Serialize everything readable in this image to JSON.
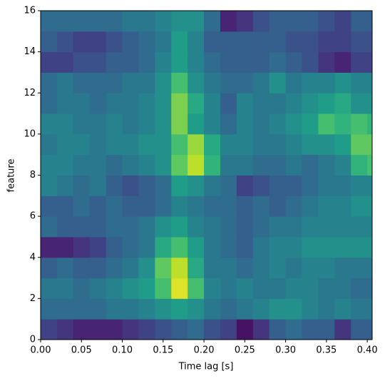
{
  "chart_data": {
    "type": "heatmap",
    "xlabel": "Time lag [s]",
    "ylabel": "feature",
    "colormap": "viridis",
    "vlim": [
      0,
      1
    ],
    "x_edges": [
      0,
      0.02,
      0.04,
      0.06,
      0.08,
      0.1,
      0.12,
      0.14,
      0.16,
      0.18,
      0.2,
      0.22,
      0.24,
      0.26,
      0.28,
      0.3,
      0.32,
      0.34,
      0.36,
      0.38,
      0.4,
      0.406
    ],
    "xlim": [
      0,
      0.406
    ],
    "ylim": [
      0,
      16
    ],
    "xticks": [
      {
        "value": 0,
        "label": "0.00"
      },
      {
        "value": 0.05,
        "label": "0.05"
      },
      {
        "value": 0.1,
        "label": "0.10"
      },
      {
        "value": 0.15,
        "label": "0.15"
      },
      {
        "value": 0.2,
        "label": "0.20"
      },
      {
        "value": 0.25,
        "label": "0.25"
      },
      {
        "value": 0.3,
        "label": "0.30"
      },
      {
        "value": 0.35,
        "label": "0.35"
      },
      {
        "value": 0.4,
        "label": "0.40"
      }
    ],
    "yticks": [
      0,
      2,
      4,
      6,
      8,
      10,
      12,
      14,
      16
    ],
    "z": [
      [
        0.2,
        0.15,
        0.1,
        0.1,
        0.1,
        0.15,
        0.2,
        0.25,
        0.3,
        0.35,
        0.25,
        0.2,
        0.05,
        0.15,
        0.3,
        0.35,
        0.3,
        0.3,
        0.15,
        0.3,
        0.3
      ],
      [
        0.35,
        0.35,
        0.35,
        0.35,
        0.4,
        0.4,
        0.45,
        0.5,
        0.55,
        0.5,
        0.4,
        0.35,
        0.4,
        0.45,
        0.5,
        0.5,
        0.45,
        0.4,
        0.45,
        0.4,
        0.4
      ],
      [
        0.4,
        0.4,
        0.35,
        0.4,
        0.45,
        0.5,
        0.55,
        0.7,
        0.95,
        0.7,
        0.45,
        0.4,
        0.45,
        0.4,
        0.4,
        0.45,
        0.45,
        0.4,
        0.4,
        0.35,
        0.35
      ],
      [
        0.3,
        0.35,
        0.3,
        0.3,
        0.35,
        0.4,
        0.5,
        0.75,
        0.9,
        0.6,
        0.4,
        0.4,
        0.35,
        0.4,
        0.45,
        0.4,
        0.45,
        0.45,
        0.4,
        0.4,
        0.4
      ],
      [
        0.1,
        0.1,
        0.15,
        0.2,
        0.3,
        0.35,
        0.4,
        0.6,
        0.7,
        0.55,
        0.4,
        0.35,
        0.3,
        0.4,
        0.45,
        0.45,
        0.5,
        0.5,
        0.5,
        0.5,
        0.5
      ],
      [
        0.35,
        0.3,
        0.3,
        0.3,
        0.35,
        0.35,
        0.4,
        0.5,
        0.55,
        0.45,
        0.4,
        0.35,
        0.3,
        0.35,
        0.4,
        0.4,
        0.45,
        0.45,
        0.45,
        0.45,
        0.45
      ],
      [
        0.3,
        0.3,
        0.35,
        0.3,
        0.35,
        0.3,
        0.3,
        0.35,
        0.45,
        0.4,
        0.35,
        0.35,
        0.3,
        0.35,
        0.3,
        0.35,
        0.4,
        0.45,
        0.45,
        0.5,
        0.5
      ],
      [
        0.45,
        0.4,
        0.35,
        0.4,
        0.3,
        0.25,
        0.3,
        0.35,
        0.55,
        0.5,
        0.4,
        0.35,
        0.2,
        0.25,
        0.3,
        0.3,
        0.35,
        0.4,
        0.4,
        0.45,
        0.45
      ],
      [
        0.45,
        0.45,
        0.4,
        0.4,
        0.35,
        0.4,
        0.45,
        0.5,
        0.75,
        0.9,
        0.65,
        0.4,
        0.4,
        0.35,
        0.35,
        0.4,
        0.35,
        0.4,
        0.45,
        0.65,
        0.7
      ],
      [
        0.4,
        0.45,
        0.45,
        0.4,
        0.45,
        0.45,
        0.5,
        0.5,
        0.7,
        0.85,
        0.6,
        0.45,
        0.45,
        0.4,
        0.4,
        0.45,
        0.5,
        0.5,
        0.55,
        0.75,
        0.75
      ],
      [
        0.45,
        0.45,
        0.4,
        0.4,
        0.45,
        0.4,
        0.45,
        0.5,
        0.8,
        0.55,
        0.45,
        0.35,
        0.45,
        0.4,
        0.45,
        0.5,
        0.55,
        0.7,
        0.65,
        0.7,
        0.65
      ],
      [
        0.35,
        0.4,
        0.4,
        0.35,
        0.4,
        0.4,
        0.45,
        0.5,
        0.8,
        0.6,
        0.45,
        0.3,
        0.45,
        0.4,
        0.4,
        0.45,
        0.5,
        0.55,
        0.6,
        0.5,
        0.5
      ],
      [
        0.35,
        0.4,
        0.35,
        0.35,
        0.35,
        0.4,
        0.4,
        0.5,
        0.7,
        0.5,
        0.4,
        0.35,
        0.35,
        0.4,
        0.5,
        0.4,
        0.45,
        0.45,
        0.5,
        0.45,
        0.45
      ],
      [
        0.2,
        0.2,
        0.25,
        0.25,
        0.3,
        0.3,
        0.35,
        0.45,
        0.55,
        0.45,
        0.35,
        0.3,
        0.3,
        0.3,
        0.35,
        0.3,
        0.25,
        0.15,
        0.1,
        0.2,
        0.2
      ],
      [
        0.3,
        0.25,
        0.2,
        0.2,
        0.25,
        0.3,
        0.35,
        0.4,
        0.55,
        0.45,
        0.3,
        0.3,
        0.3,
        0.3,
        0.3,
        0.25,
        0.25,
        0.2,
        0.2,
        0.25,
        0.25
      ],
      [
        0.35,
        0.35,
        0.35,
        0.35,
        0.35,
        0.4,
        0.4,
        0.45,
        0.5,
        0.5,
        0.35,
        0.1,
        0.15,
        0.25,
        0.3,
        0.3,
        0.3,
        0.25,
        0.2,
        0.3,
        0.3
      ]
    ]
  }
}
